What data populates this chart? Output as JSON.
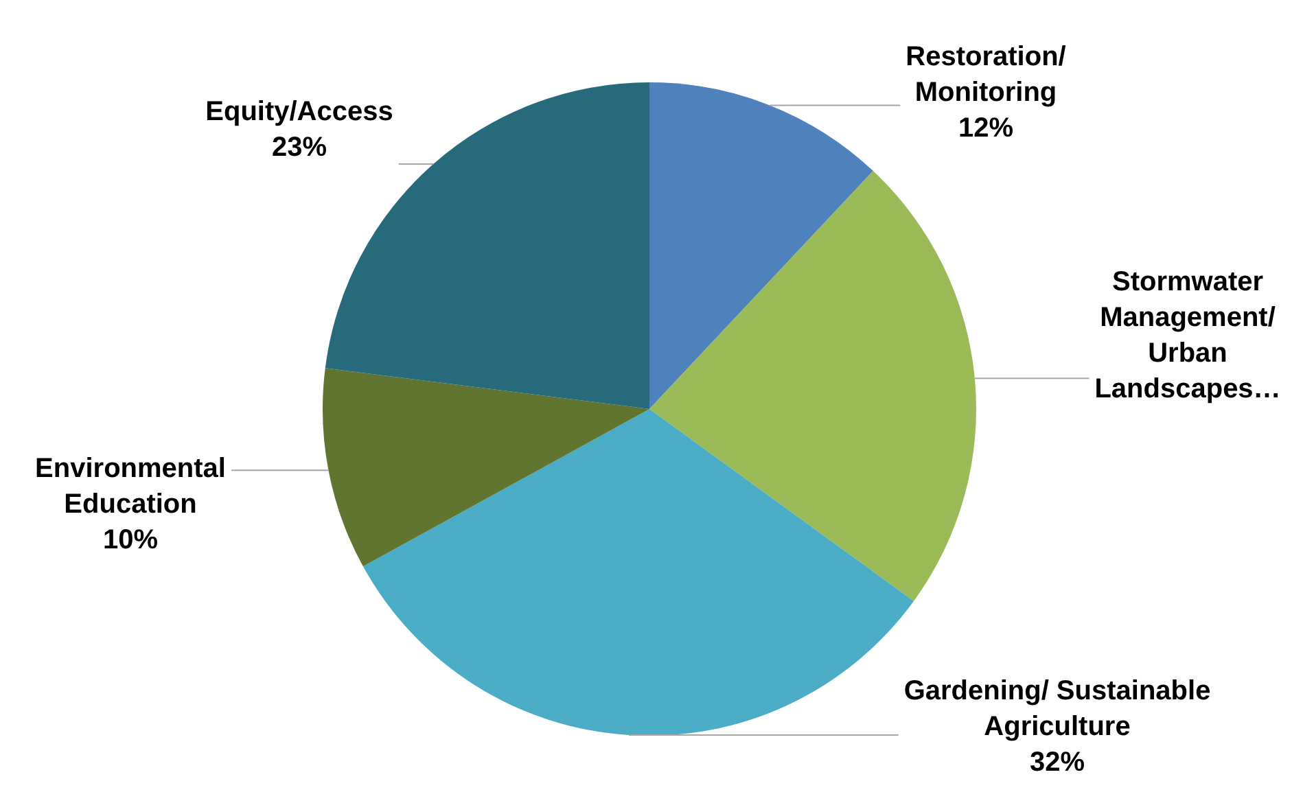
{
  "chart_data": {
    "type": "pie",
    "categories": [
      "Restoration/ Monitoring",
      "Stormwater Management/ Urban Landscapes…",
      "Gardening/ Sustainable Agriculture",
      "Environmental Education",
      "Equity/Access"
    ],
    "values": [
      12,
      23,
      32,
      10,
      23
    ],
    "colors": [
      "#4f81bd",
      "#9bbb59",
      "#4bacc6",
      "#5f7530",
      "#276a7c"
    ],
    "value_labels": [
      "12%",
      null,
      "32%",
      "10%",
      "23%"
    ]
  }
}
